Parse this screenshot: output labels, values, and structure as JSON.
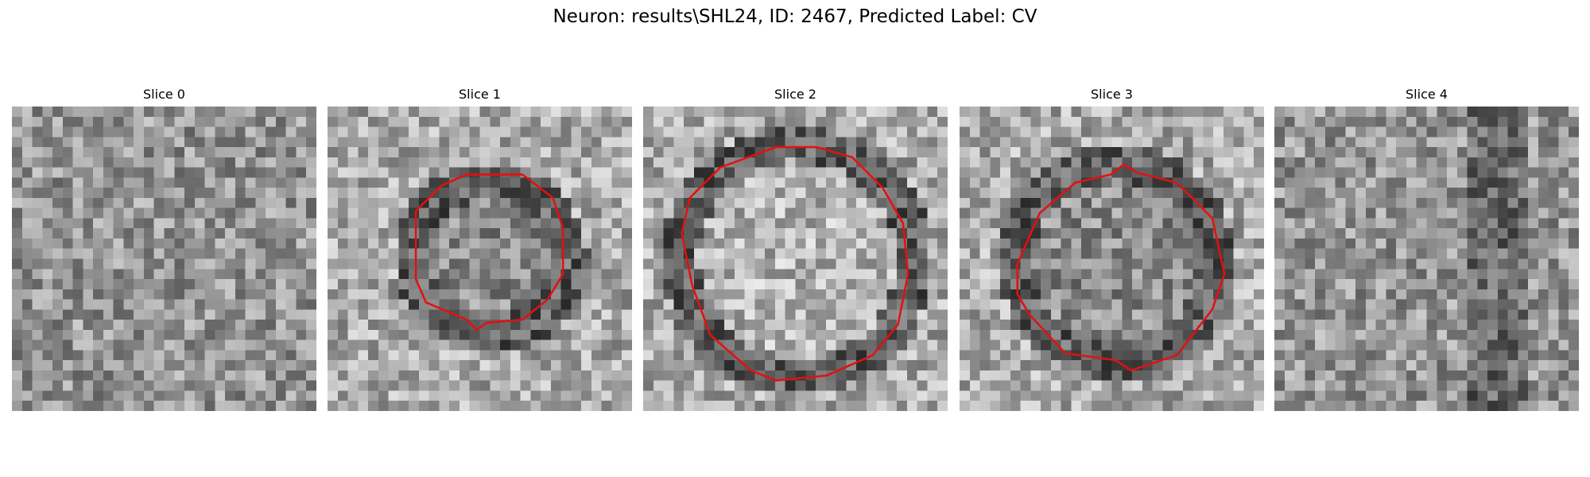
{
  "title": "Neuron: results\\SHL24, ID: 2467, Predicted Label: CV",
  "slices": [
    {
      "title": "Slice 0"
    },
    {
      "title": "Slice 1"
    },
    {
      "title": "Slice 2"
    },
    {
      "title": "Slice 3"
    },
    {
      "title": "Slice 4"
    }
  ]
}
